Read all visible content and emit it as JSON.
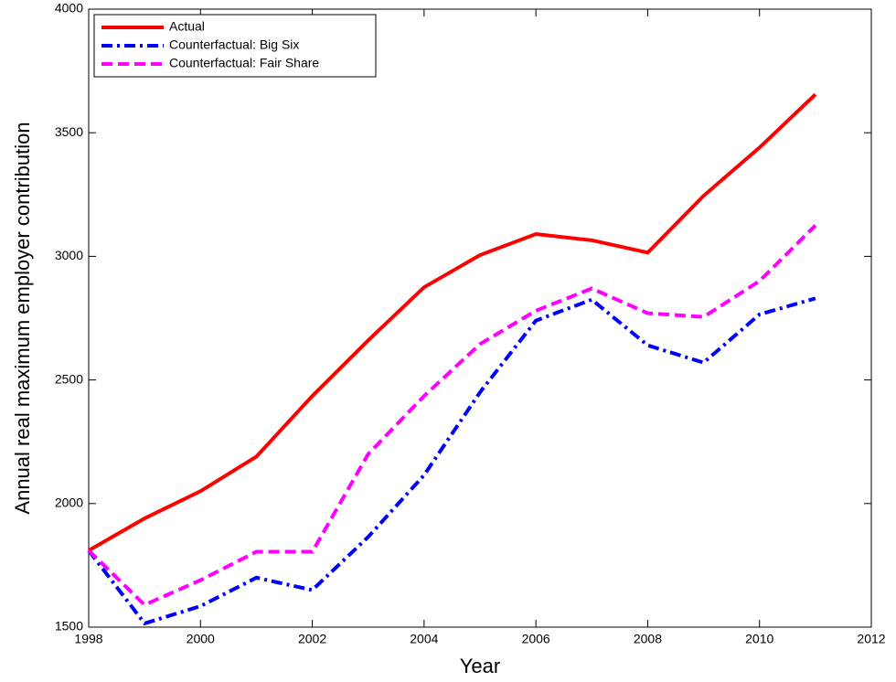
{
  "chart_data": {
    "type": "line",
    "x_label": "Year",
    "y_label": "Annual real maximum employer contribution",
    "x": [
      1998,
      1999,
      2000,
      2001,
      2002,
      2003,
      2004,
      2005,
      2006,
      2007,
      2008,
      2009,
      2010,
      2011
    ],
    "series": [
      {
        "name": "Actual",
        "color": "#ff0000",
        "dash": "solid",
        "values": [
          1810,
          1940,
          2050,
          2190,
          2435,
          2660,
          2875,
          3005,
          3090,
          3065,
          3015,
          3245,
          3440,
          3655
        ]
      },
      {
        "name": "Counterfactual: Big Six",
        "color": "#0000ff",
        "dash": "dash-dot",
        "values": [
          1810,
          1515,
          1585,
          1700,
          1650,
          1865,
          2115,
          2450,
          2740,
          2825,
          2640,
          2570,
          2765,
          2830
        ]
      },
      {
        "name": "Counterfactual: Fair Share",
        "color": "#ff00ff",
        "dash": "dashed",
        "values": [
          1810,
          1590,
          1690,
          1805,
          1805,
          2200,
          2435,
          2645,
          2780,
          2870,
          2770,
          2755,
          2900,
          3125
        ]
      }
    ],
    "xlim": [
      1998,
      2012
    ],
    "xticks": [
      1998,
      2000,
      2002,
      2004,
      2006,
      2008,
      2010,
      2012
    ],
    "ylim": [
      1500,
      4000
    ],
    "yticks": [
      1500,
      2000,
      2500,
      3000,
      3500,
      4000
    ],
    "grid": false,
    "legend": "upper-left"
  }
}
